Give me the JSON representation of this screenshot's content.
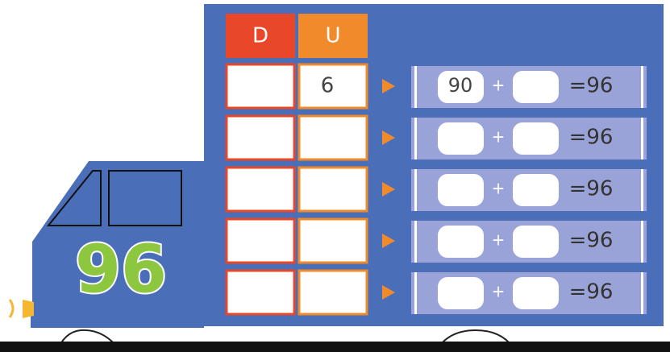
{
  "header": {
    "tens": "D",
    "units": "U"
  },
  "truck_number": "96",
  "rows": [
    {
      "units": "6",
      "tens_value": "90",
      "plus": "+",
      "result": "=96"
    },
    {
      "plus": "+",
      "result": "=96"
    },
    {
      "plus": "+",
      "result": "=96"
    },
    {
      "plus": "+",
      "result": "=96"
    },
    {
      "plus": "+",
      "result": "=96"
    }
  ]
}
